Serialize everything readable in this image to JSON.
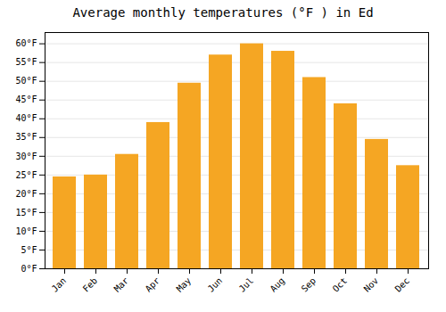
{
  "chart_data": {
    "type": "bar",
    "title": "Average monthly temperatures (°F ) in Ed",
    "categories": [
      "Jan",
      "Feb",
      "Mar",
      "Apr",
      "May",
      "Jun",
      "Jul",
      "Aug",
      "Sep",
      "Oct",
      "Nov",
      "Dec"
    ],
    "values": [
      24.5,
      25.0,
      30.5,
      39.0,
      49.5,
      57.0,
      60.0,
      58.0,
      51.0,
      44.0,
      34.5,
      27.5
    ],
    "color": "#F5A623",
    "ylim": [
      0,
      63
    ],
    "yticks": [
      {
        "value": 0,
        "label": "0°F"
      },
      {
        "value": 5,
        "label": "5°F"
      },
      {
        "value": 10,
        "label": "10°F"
      },
      {
        "value": 15,
        "label": "15°F"
      },
      {
        "value": 20,
        "label": "20°F"
      },
      {
        "value": 25,
        "label": "25°F"
      },
      {
        "value": 30,
        "label": "30°F"
      },
      {
        "value": 35,
        "label": "35°F"
      },
      {
        "value": 40,
        "label": "40°F"
      },
      {
        "value": 45,
        "label": "45°F"
      },
      {
        "value": 50,
        "label": "50°F"
      },
      {
        "value": 55,
        "label": "55°F"
      },
      {
        "value": 60,
        "label": "60°F"
      }
    ],
    "grid": true
  }
}
